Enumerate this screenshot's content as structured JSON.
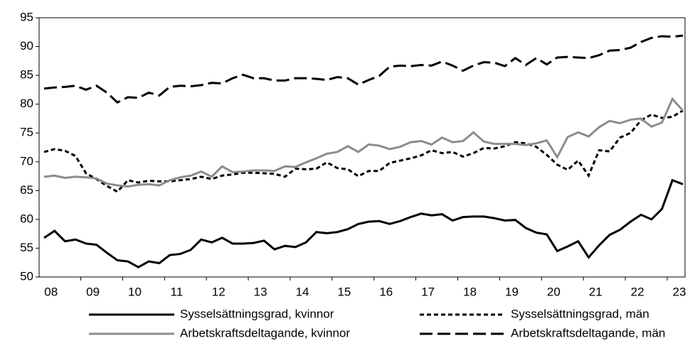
{
  "chart_data": {
    "type": "line",
    "categories": [
      null,
      "08",
      null,
      null,
      null,
      "09",
      null,
      null,
      null,
      "10",
      null,
      null,
      null,
      "11",
      null,
      null,
      null,
      "12",
      null,
      null,
      null,
      "13",
      null,
      null,
      null,
      "14",
      null,
      null,
      null,
      "15",
      null,
      null,
      null,
      "16",
      null,
      null,
      null,
      "17",
      null,
      null,
      null,
      "18",
      null,
      null,
      null,
      "19",
      null,
      null,
      null,
      "20",
      null,
      null,
      null,
      "21",
      null,
      null,
      null,
      "22",
      null,
      null,
      null,
      "23"
    ],
    "ylim": [
      50,
      95
    ],
    "yticks": [
      50,
      55,
      60,
      65,
      70,
      75,
      80,
      85,
      90,
      95
    ],
    "grid": false,
    "legend": "bottom",
    "series": [
      {
        "name": "Sysselsättningsgrad, kvinnor",
        "color": "#000000",
        "dash": "solid",
        "values": [
          56.8,
          58,
          56.2,
          56.5,
          55.8,
          55.6,
          54.2,
          52.9,
          52.7,
          51.7,
          52.7,
          52.4,
          53.8,
          54,
          54.7,
          56.5,
          56,
          56.8,
          55.8,
          55.8,
          55.9,
          56.3,
          54.8,
          55.4,
          55.2,
          56,
          57.8,
          57.6,
          57.8,
          58.3,
          59.2,
          59.6,
          59.7,
          59.2,
          59.7,
          60.4,
          61,
          60.7,
          60.9,
          59.8,
          60.4,
          60.5,
          60.5,
          60.2,
          59.8,
          59.9,
          58.5,
          57.7,
          57.4,
          54.5,
          55.3,
          56.2,
          53.4,
          55.5,
          57.3,
          58.2,
          59.6,
          60.8,
          60,
          61.8,
          66.8,
          66.1
        ]
      },
      {
        "name": "Sysselsättningsgrad, män",
        "color": "#000000",
        "dash": "dotted",
        "values": [
          71.7,
          72.2,
          71.9,
          71,
          68,
          67,
          65.8,
          64.8,
          66.8,
          66.4,
          66.7,
          66.6,
          66.6,
          66.8,
          67,
          67.4,
          67,
          67.6,
          67.8,
          68.1,
          68.1,
          68,
          67.9,
          67.4,
          68.8,
          68.7,
          68.8,
          69.9,
          68.9,
          68.7,
          67.5,
          68.4,
          68.4,
          69.8,
          70.2,
          70.6,
          71.1,
          72,
          71.5,
          71.7,
          70.9,
          71.5,
          72.4,
          72.3,
          72.7,
          73.4,
          73.2,
          72.6,
          71.2,
          69.5,
          68.6,
          70.2,
          67.6,
          72,
          71.8,
          74.2,
          75,
          77.2,
          78.2,
          77.6,
          77.8,
          78.9
        ]
      },
      {
        "name": "Arbetskraftsdeltagande, kvinnor",
        "color": "#8c8c8c",
        "dash": "solid",
        "values": [
          67.4,
          67.6,
          67.2,
          67.4,
          67.3,
          67.1,
          66.2,
          65.9,
          65.7,
          66,
          66.1,
          65.9,
          66.8,
          67.3,
          67.6,
          68.3,
          67.4,
          69.2,
          68.2,
          68.3,
          68.5,
          68.5,
          68.4,
          69.2,
          69.1,
          69.9,
          70.6,
          71.4,
          71.7,
          72.7,
          71.7,
          73,
          72.8,
          72.2,
          72.6,
          73.4,
          73.6,
          73,
          74.2,
          73.4,
          73.6,
          75.1,
          73.5,
          73.1,
          73.1,
          73.1,
          72.9,
          73.2,
          73.7,
          70.8,
          74.3,
          75.1,
          74.4,
          76,
          77.1,
          76.7,
          77.3,
          77.5,
          76.1,
          76.8,
          80.9,
          78.9
        ]
      },
      {
        "name": "Arbetskraftsdeltagande, män",
        "color": "#000000",
        "dash": "dashed",
        "values": [
          82.7,
          82.9,
          83,
          83.2,
          82.5,
          83.2,
          82,
          80.3,
          81.2,
          81.1,
          82,
          81.5,
          83,
          83.2,
          83.1,
          83.3,
          83.7,
          83.6,
          84.5,
          85.1,
          84.5,
          84.5,
          84.1,
          84.1,
          84.5,
          84.5,
          84.4,
          84.2,
          84.7,
          84.5,
          83.4,
          84.2,
          84.9,
          86.5,
          86.7,
          86.6,
          86.8,
          86.7,
          87.4,
          86.7,
          85.8,
          86.7,
          87.3,
          87.2,
          86.6,
          88,
          86.8,
          88,
          86.9,
          88.1,
          88.2,
          88.1,
          88,
          88.5,
          89.3,
          89.4,
          89.8,
          90.8,
          91.5,
          91.8,
          91.7,
          91.9
        ]
      }
    ]
  }
}
